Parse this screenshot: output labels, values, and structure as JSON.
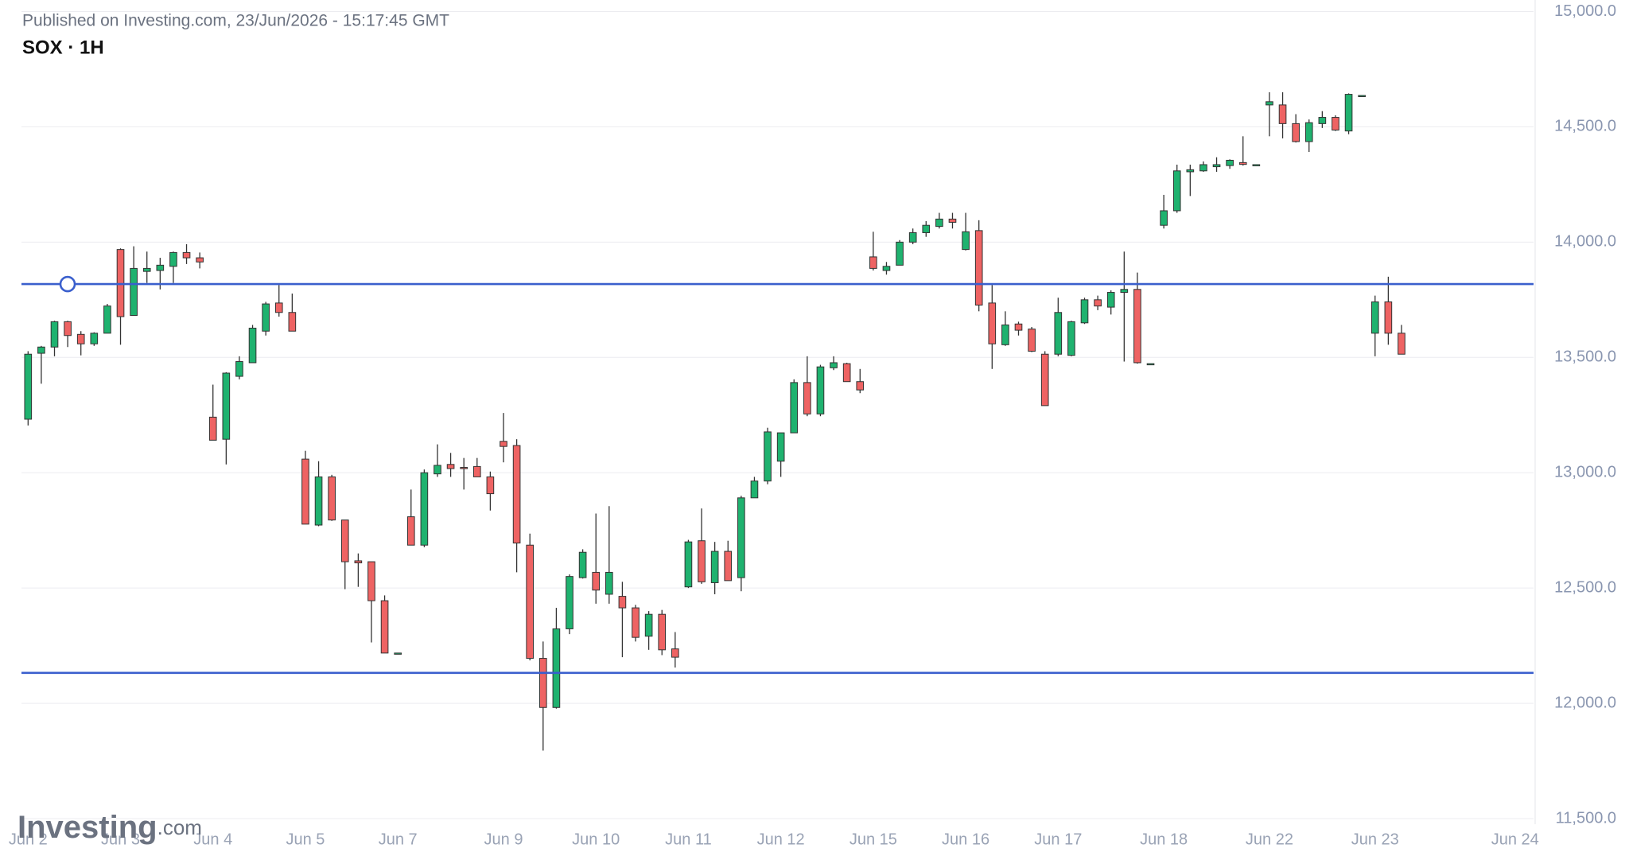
{
  "chart_data": {
    "type": "candlestick",
    "published": "Published on Investing.com, 23/Jun/2026 - 15:17:45 GMT",
    "title": "SOX · 1H",
    "logo": "Investing",
    "logo_suffix": ".com",
    "up_color": "#1fb26f",
    "down_color": "#ee6363",
    "line_color": "#3a5fcd",
    "grid": true,
    "hlines": [
      13818,
      12132
    ],
    "xlim": [
      -0.5,
      114
    ],
    "ylim": [
      11500,
      15000
    ],
    "yticks": [
      {
        "value": 11500,
        "label": "11,500.0"
      },
      {
        "value": 12000,
        "label": "12,000.0"
      },
      {
        "value": 12500,
        "label": "12,500.0"
      },
      {
        "value": 13000,
        "label": "13,000.0"
      },
      {
        "value": 13500,
        "label": "13,500.0"
      },
      {
        "value": 14000,
        "label": "14,000.0"
      },
      {
        "value": 14500,
        "label": "14,500.0"
      },
      {
        "value": 15000,
        "label": "15,000.0"
      }
    ],
    "xticks": [
      {
        "value": 0,
        "label": "Jun 2"
      },
      {
        "value": 7,
        "label": "Jun 3"
      },
      {
        "value": 14,
        "label": "Jun 4"
      },
      {
        "value": 21,
        "label": "Jun 5"
      },
      {
        "value": 28,
        "label": "Jun 7"
      },
      {
        "value": 36,
        "label": "Jun 9"
      },
      {
        "value": 43,
        "label": "Jun 10"
      },
      {
        "value": 50,
        "label": "Jun 11"
      },
      {
        "value": 57,
        "label": "Jun 12"
      },
      {
        "value": 64,
        "label": "Jun 15"
      },
      {
        "value": 71,
        "label": "Jun 16"
      },
      {
        "value": 78,
        "label": "Jun 17"
      },
      {
        "value": 86,
        "label": "Jun 18"
      },
      {
        "value": 94,
        "label": "Jun 22"
      },
      {
        "value": 102,
        "label": "Jun 23"
      },
      {
        "value": 112.6,
        "label": "Jun 24"
      }
    ],
    "open": [
      13232,
      13518,
      13545,
      13655,
      13600,
      13559,
      13605,
      13968,
      13682,
      13873,
      13877,
      13895,
      13955,
      13932,
      13241,
      13145,
      13418,
      13477,
      13614,
      13736,
      13695,
      13059,
      12773,
      12982,
      12795,
      12618,
      12614,
      12445,
      12218,
      12809,
      12686,
      12995,
      13036,
      13023,
      13027,
      12982,
      13136,
      13118,
      12686,
      12195,
      11982,
      12323,
      12545,
      12568,
      12473,
      12464,
      12414,
      12291,
      12386,
      12236,
      12505,
      12705,
      12523,
      12659,
      12545,
      12891,
      12964,
      13050,
      13173,
      13391,
      13255,
      13455,
      13473,
      13395,
      13936,
      13877,
      13900,
      14000,
      14041,
      14068,
      14100,
      13968,
      14050,
      13736,
      13555,
      13645,
      13623,
      13514,
      13514,
      13509,
      13650,
      13750,
      13718,
      13782,
      13795,
      13473,
      14073,
      14136,
      14305,
      14309,
      14327,
      14332,
      14345,
      14336,
      14595,
      14595,
      14514,
      14436,
      14514,
      14541,
      14482,
      14636,
      13605,
      13741,
      13605
    ],
    "high": [
      13527,
      13550,
      13659,
      13659,
      13614,
      13609,
      13732,
      13973,
      13982,
      13959,
      13932,
      13959,
      13991,
      13955,
      13382,
      13436,
      13505,
      13641,
      13741,
      13814,
      13777,
      13095,
      13050,
      12991,
      12795,
      12650,
      12614,
      12468,
      12218,
      12927,
      13014,
      13123,
      13086,
      13064,
      13064,
      13005,
      13259,
      13145,
      12736,
      12268,
      12414,
      12559,
      12668,
      12823,
      12855,
      12527,
      12427,
      12400,
      12405,
      12309,
      12709,
      12845,
      12700,
      12705,
      12900,
      12982,
      13195,
      13173,
      13405,
      13505,
      13468,
      13505,
      13477,
      13450,
      14045,
      13914,
      14009,
      14059,
      14091,
      14127,
      14127,
      14127,
      14095,
      13814,
      13700,
      13655,
      13632,
      13527,
      13759,
      13659,
      13759,
      13768,
      13791,
      13959,
      13868,
      13473,
      14205,
      14336,
      14336,
      14350,
      14368,
      14359,
      14459,
      14336,
      14650,
      14650,
      14555,
      14532,
      14568,
      14550,
      14645,
      14636,
      13768,
      13850,
      13641
    ],
    "low": [
      13205,
      13386,
      13505,
      13545,
      13509,
      13550,
      13605,
      13555,
      13682,
      13823,
      13795,
      13823,
      13905,
      13886,
      13141,
      13036,
      13405,
      13477,
      13595,
      13677,
      13614,
      12777,
      12768,
      12791,
      12495,
      12505,
      12264,
      12218,
      12218,
      12686,
      12677,
      12982,
      12982,
      12927,
      12982,
      12836,
      13045,
      12568,
      12186,
      11795,
      11977,
      12300,
      12541,
      12432,
      12432,
      12200,
      12268,
      12232,
      12209,
      12155,
      12500,
      12518,
      12473,
      12532,
      12486,
      12891,
      12950,
      12982,
      13173,
      13245,
      13245,
      13445,
      13395,
      13345,
      13877,
      13859,
      13900,
      13991,
      14023,
      14059,
      14059,
      13964,
      13700,
      13450,
      13550,
      13595,
      13523,
      13291,
      13505,
      13505,
      13645,
      13705,
      13686,
      13482,
      13473,
      13473,
      14059,
      14127,
      14200,
      14305,
      14305,
      14318,
      14332,
      14336,
      14459,
      14450,
      14432,
      14391,
      14495,
      14482,
      14468,
      14636,
      13505,
      13555,
      13514
    ],
    "close": [
      13514,
      13545,
      13655,
      13595,
      13559,
      13605,
      13723,
      13677,
      13886,
      13886,
      13900,
      13955,
      13932,
      13914,
      13141,
      13432,
      13482,
      13627,
      13732,
      13695,
      13614,
      12777,
      12982,
      12795,
      12614,
      12609,
      12445,
      12218,
      12218,
      12686,
      13000,
      13032,
      13018,
      13018,
      12982,
      12909,
      13114,
      12695,
      12195,
      11982,
      12323,
      12550,
      12655,
      12491,
      12568,
      12414,
      12286,
      12386,
      12232,
      12200,
      12700,
      12527,
      12659,
      12532,
      12891,
      12964,
      13177,
      13173,
      13391,
      13255,
      13459,
      13477,
      13395,
      13359,
      13886,
      13895,
      14000,
      14041,
      14073,
      14100,
      14086,
      14045,
      13727,
      13559,
      13641,
      13618,
      13527,
      13291,
      13695,
      13655,
      13750,
      13723,
      13782,
      13795,
      13477,
      13473,
      14136,
      14309,
      14314,
      14336,
      14336,
      14355,
      14337,
      14336,
      14609,
      14514,
      14436,
      14518,
      14541,
      14486,
      14641,
      14636,
      13741,
      13605,
      13514
    ]
  }
}
